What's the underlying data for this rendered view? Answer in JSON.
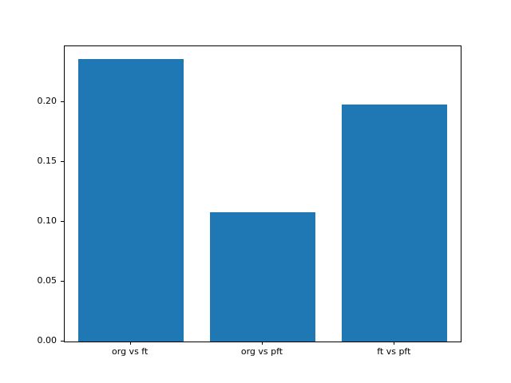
{
  "figure": {
    "background": "#ffffff",
    "bar_color": "#1f77b4",
    "axis_color": "#000000"
  },
  "chart_data": {
    "type": "bar",
    "categories": [
      "org vs ft",
      "org vs pft",
      "ft vs pft"
    ],
    "values": [
      0.236,
      0.108,
      0.198
    ],
    "title": "",
    "xlabel": "",
    "ylabel": "",
    "ylim": [
      0,
      0.2467
    ],
    "yticks": [
      0.0,
      0.05,
      0.1,
      0.15,
      0.2
    ],
    "ytick_labels": [
      "0.00",
      "0.05",
      "0.10",
      "0.15",
      "0.20"
    ],
    "grid": false,
    "legend": null,
    "bar_width_fraction": 0.8
  }
}
